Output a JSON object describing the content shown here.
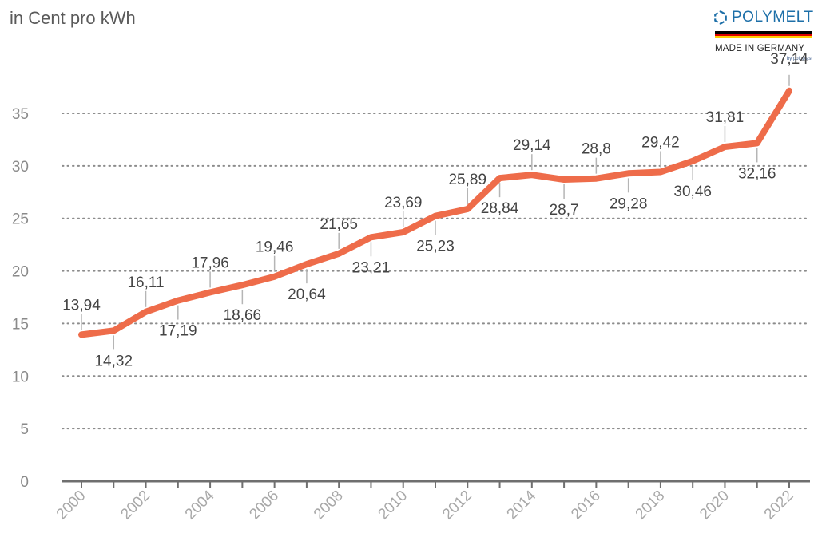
{
  "header": {
    "unit_label": "in Cent pro kWh"
  },
  "logo": {
    "brand": "POLYMELT",
    "tagline": "MADE IN GERMANY",
    "by": "by poloplast",
    "brand_color": "#1d6fa8",
    "flag_colors": [
      "#000000",
      "#dd0000",
      "#ffce00"
    ]
  },
  "chart_data": {
    "type": "line",
    "title": "",
    "xlabel": "",
    "ylabel": "in Cent pro kWh",
    "x": [
      2000,
      2001,
      2002,
      2003,
      2004,
      2005,
      2006,
      2007,
      2008,
      2009,
      2010,
      2011,
      2012,
      2013,
      2014,
      2015,
      2016,
      2017,
      2018,
      2019,
      2020,
      2021,
      2022
    ],
    "series": [
      {
        "values": [
          13.94,
          14.32,
          16.11,
          17.19,
          17.96,
          18.66,
          19.46,
          20.64,
          21.65,
          23.21,
          23.69,
          25.23,
          25.89,
          28.84,
          29.14,
          28.7,
          28.8,
          29.28,
          29.42,
          30.46,
          31.81,
          32.16,
          37.14
        ],
        "labels": [
          "13,94",
          "14,32",
          "16,11",
          "17,19",
          "17,96",
          "18,66",
          "19,46",
          "20,64",
          "21,65",
          "23,21",
          "23,69",
          "25,23",
          "25,89",
          "28,84",
          "29,14",
          "28,7",
          "28,8",
          "29,28",
          "29,42",
          "30,46",
          "31,81",
          "32,16",
          "37,14"
        ],
        "color": "#ee6c4a"
      }
    ],
    "x_tick_labels": [
      "2000",
      "2002",
      "2004",
      "2006",
      "2008",
      "2010",
      "2012",
      "2014",
      "2016",
      "2018",
      "2020",
      "2022"
    ],
    "y_tick_labels": [
      "0",
      "5",
      "10",
      "15",
      "20",
      "25",
      "30",
      "35"
    ],
    "y_ticks": [
      0,
      5,
      10,
      15,
      20,
      25,
      30,
      35
    ],
    "ylim": [
      0,
      37
    ],
    "grid": "horizontal-dotted"
  }
}
